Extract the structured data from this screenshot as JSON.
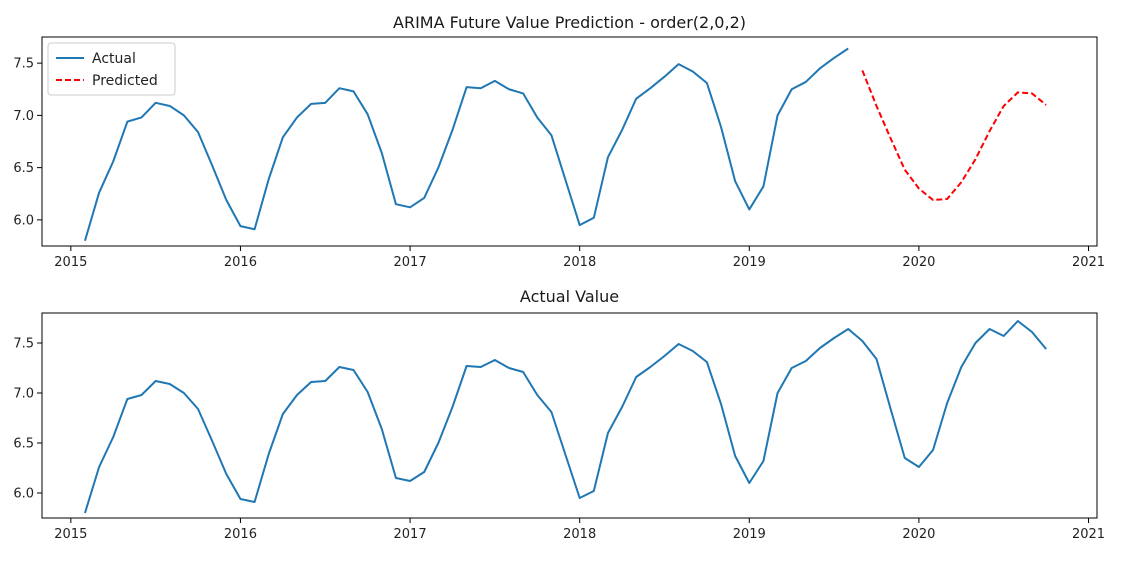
{
  "chart_data": [
    {
      "type": "line",
      "title": "ARIMA Future Value Prediction - order(2,0,2)",
      "xlabel": "",
      "ylabel": "",
      "x_axis": "time",
      "xlim": [
        2014.83,
        2021.05
      ],
      "ylim": [
        5.75,
        7.75
      ],
      "xticks": [
        2015,
        2016,
        2017,
        2018,
        2019,
        2020,
        2021
      ],
      "xtick_labels": [
        "2015",
        "2016",
        "2017",
        "2018",
        "2019",
        "2020",
        "2021"
      ],
      "yticks": [
        6.0,
        6.5,
        7.0,
        7.5
      ],
      "ytick_labels": [
        "6.0",
        "6.5",
        "7.0",
        "7.5"
      ],
      "grid": false,
      "legend": {
        "placement": "top-left"
      },
      "series": [
        {
          "name": "Actual",
          "color": "#1f77b4",
          "style": "solid",
          "x": [
            "2015-02",
            "2015-03",
            "2015-04",
            "2015-05",
            "2015-06",
            "2015-07",
            "2015-08",
            "2015-09",
            "2015-10",
            "2015-11",
            "2015-12",
            "2016-01",
            "2016-02",
            "2016-03",
            "2016-04",
            "2016-05",
            "2016-06",
            "2016-07",
            "2016-08",
            "2016-09",
            "2016-10",
            "2016-11",
            "2016-12",
            "2017-01",
            "2017-02",
            "2017-03",
            "2017-04",
            "2017-05",
            "2017-06",
            "2017-07",
            "2017-08",
            "2017-09",
            "2017-10",
            "2017-11",
            "2017-12",
            "2018-01",
            "2018-02",
            "2018-03",
            "2018-04",
            "2018-05",
            "2018-06",
            "2018-07",
            "2018-08",
            "2018-09",
            "2018-10",
            "2018-11",
            "2018-12",
            "2019-01",
            "2019-02",
            "2019-03",
            "2019-04",
            "2019-05",
            "2019-06",
            "2019-07",
            "2019-08"
          ],
          "values": [
            5.8,
            6.26,
            6.56,
            6.94,
            6.98,
            7.12,
            7.09,
            7.0,
            6.84,
            6.52,
            6.19,
            5.94,
            5.91,
            6.39,
            6.79,
            6.98,
            7.11,
            7.12,
            7.26,
            7.23,
            7.01,
            6.64,
            6.15,
            6.12,
            6.21,
            6.5,
            6.86,
            7.27,
            7.26,
            7.33,
            7.25,
            7.21,
            6.98,
            6.81,
            6.38,
            5.95,
            6.02,
            6.6,
            6.86,
            7.16,
            7.26,
            7.37,
            7.49,
            7.42,
            7.31,
            6.89,
            6.37,
            6.1,
            6.32,
            7.0,
            7.25,
            7.32,
            7.45,
            7.55,
            7.64
          ]
        },
        {
          "name": "Predicted",
          "color": "#ff0000",
          "style": "dashed",
          "x": [
            "2019-09",
            "2019-10",
            "2019-11",
            "2019-12",
            "2020-01",
            "2020-02",
            "2020-03",
            "2020-04",
            "2020-05",
            "2020-06",
            "2020-07",
            "2020-08",
            "2020-09",
            "2020-10"
          ],
          "values": [
            7.43,
            7.09,
            6.78,
            6.48,
            6.3,
            6.19,
            6.2,
            6.36,
            6.58,
            6.85,
            7.09,
            7.22,
            7.21,
            7.1
          ]
        }
      ]
    },
    {
      "type": "line",
      "title": "Actual Value",
      "xlabel": "",
      "ylabel": "",
      "x_axis": "time",
      "xlim": [
        2014.83,
        2021.05
      ],
      "ylim": [
        5.75,
        7.8
      ],
      "xticks": [
        2015,
        2016,
        2017,
        2018,
        2019,
        2020,
        2021
      ],
      "xtick_labels": [
        "2015",
        "2016",
        "2017",
        "2018",
        "2019",
        "2020",
        "2021"
      ],
      "yticks": [
        6.0,
        6.5,
        7.0,
        7.5
      ],
      "ytick_labels": [
        "6.0",
        "6.5",
        "7.0",
        "7.5"
      ],
      "grid": false,
      "series": [
        {
          "color": "#1f77b4",
          "style": "solid",
          "x": [
            "2015-02",
            "2015-03",
            "2015-04",
            "2015-05",
            "2015-06",
            "2015-07",
            "2015-08",
            "2015-09",
            "2015-10",
            "2015-11",
            "2015-12",
            "2016-01",
            "2016-02",
            "2016-03",
            "2016-04",
            "2016-05",
            "2016-06",
            "2016-07",
            "2016-08",
            "2016-09",
            "2016-10",
            "2016-11",
            "2016-12",
            "2017-01",
            "2017-02",
            "2017-03",
            "2017-04",
            "2017-05",
            "2017-06",
            "2017-07",
            "2017-08",
            "2017-09",
            "2017-10",
            "2017-11",
            "2017-12",
            "2018-01",
            "2018-02",
            "2018-03",
            "2018-04",
            "2018-05",
            "2018-06",
            "2018-07",
            "2018-08",
            "2018-09",
            "2018-10",
            "2018-11",
            "2018-12",
            "2019-01",
            "2019-02",
            "2019-03",
            "2019-04",
            "2019-05",
            "2019-06",
            "2019-07",
            "2019-08",
            "2019-09",
            "2019-10",
            "2019-11",
            "2019-12",
            "2020-01",
            "2020-02",
            "2020-03",
            "2020-04",
            "2020-05",
            "2020-06",
            "2020-07",
            "2020-08",
            "2020-09",
            "2020-10"
          ],
          "values": [
            5.8,
            6.26,
            6.56,
            6.94,
            6.98,
            7.12,
            7.09,
            7.0,
            6.84,
            6.52,
            6.19,
            5.94,
            5.91,
            6.39,
            6.79,
            6.98,
            7.11,
            7.12,
            7.26,
            7.23,
            7.01,
            6.64,
            6.15,
            6.12,
            6.21,
            6.5,
            6.86,
            7.27,
            7.26,
            7.33,
            7.25,
            7.21,
            6.98,
            6.81,
            6.38,
            5.95,
            6.02,
            6.6,
            6.86,
            7.16,
            7.26,
            7.37,
            7.49,
            7.42,
            7.31,
            6.89,
            6.37,
            6.1,
            6.32,
            7.0,
            7.25,
            7.32,
            7.45,
            7.55,
            7.64,
            7.52,
            7.34,
            6.84,
            6.35,
            6.26,
            6.43,
            6.9,
            7.26,
            7.5,
            7.64,
            7.57,
            7.72,
            7.61,
            7.44
          ]
        }
      ]
    }
  ]
}
